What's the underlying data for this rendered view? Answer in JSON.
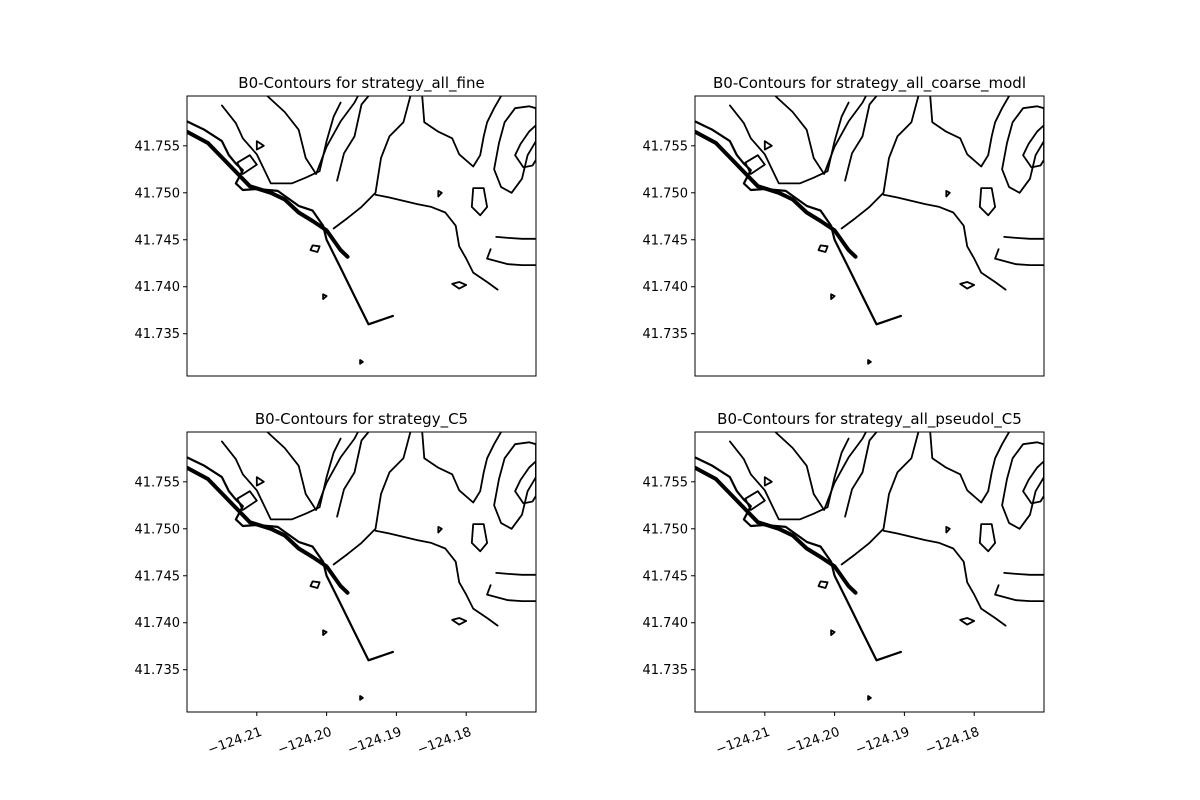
{
  "chart_data": {
    "type": "contour",
    "layout": "2x2 subplots",
    "line_color": "#000000",
    "shared_x_ticks": [
      "−124.21",
      "−124.20",
      "−124.19",
      "−124.18"
    ],
    "shared_x_tick_values": [
      -124.21,
      -124.2,
      -124.19,
      -124.18
    ],
    "x_tick_rotation_deg": 20,
    "x_ticks_shown_on": "bottom row only",
    "shared_y_ticks": [
      "41.735",
      "41.740",
      "41.745",
      "41.750",
      "41.755"
    ],
    "shared_y_tick_values": [
      41.735,
      41.74,
      41.745,
      41.75,
      41.755
    ],
    "xlim": [
      -124.22,
      -124.17
    ],
    "ylim": [
      41.7305,
      41.7603
    ],
    "grid": false,
    "legend": false,
    "panels": [
      {
        "title": "B0-Contours for  strategy_all_fine"
      },
      {
        "title": "B0-Contours for  strategy_all_coarse_modl"
      },
      {
        "title": "B0-Contours for  strategy_C5"
      },
      {
        "title": "B0-Contours for  strategy_all_pseudol_C5"
      }
    ],
    "contour_polylines": [
      [
        [
          -124.22,
          41.7565
        ],
        [
          -124.217,
          41.7553
        ],
        [
          -124.214,
          41.753
        ],
        [
          -124.211,
          41.7507
        ],
        [
          -124.208,
          41.75
        ],
        [
          -124.206,
          41.7493
        ],
        [
          -124.204,
          41.7479
        ],
        [
          -124.202,
          41.747
        ],
        [
          -124.2,
          41.746
        ],
        [
          -124.198,
          41.7439
        ],
        [
          -124.197,
          41.7432
        ]
      ],
      [
        [
          -124.22,
          41.7576
        ],
        [
          -124.2175,
          41.7567
        ],
        [
          -124.215,
          41.7555
        ],
        [
          -124.214,
          41.754
        ],
        [
          -124.213,
          41.7531
        ],
        [
          -124.212,
          41.7524
        ],
        [
          -124.213,
          41.751
        ],
        [
          -124.212,
          41.7503
        ],
        [
          -124.21,
          41.7504
        ],
        [
          -124.207,
          41.7502
        ],
        [
          -124.204,
          41.7486
        ],
        [
          -124.202,
          41.7481
        ],
        [
          -124.2005,
          41.7465
        ],
        [
          -124.2,
          41.745
        ],
        [
          -124.198,
          41.742
        ],
        [
          -124.196,
          41.739
        ],
        [
          -124.194,
          41.736
        ],
        [
          -124.1905,
          41.7369
        ]
      ],
      [
        [
          -124.215,
          41.7593
        ],
        [
          -124.213,
          41.7574
        ],
        [
          -124.212,
          41.7558
        ],
        [
          -124.21,
          41.7541
        ],
        [
          -124.208,
          41.751
        ],
        [
          -124.205,
          41.751
        ],
        [
          -124.203,
          41.7516
        ],
        [
          -124.201,
          41.7523
        ],
        [
          -124.2,
          41.7555
        ],
        [
          -124.199,
          41.7581
        ],
        [
          -124.198,
          41.7596
        ]
      ],
      [
        [
          -124.2085,
          41.7603
        ],
        [
          -124.206,
          41.7586
        ],
        [
          -124.204,
          41.7567
        ],
        [
          -124.203,
          41.7537
        ],
        [
          -124.2015,
          41.752
        ],
        [
          -124.2,
          41.7549
        ],
        [
          -124.198,
          41.7576
        ],
        [
          -124.196,
          41.7596
        ],
        [
          -124.1955,
          41.7603
        ]
      ],
      [
        [
          -124.199,
          41.7462
        ],
        [
          -124.197,
          41.7473
        ],
        [
          -124.195,
          41.7485
        ],
        [
          -124.193,
          41.75
        ],
        [
          -124.1922,
          41.7537
        ],
        [
          -124.191,
          41.756
        ],
        [
          -124.189,
          41.7575
        ],
        [
          -124.188,
          41.7603
        ]
      ],
      [
        [
          -124.1985,
          41.7513
        ],
        [
          -124.1975,
          41.7542
        ],
        [
          -124.196,
          41.756
        ],
        [
          -124.195,
          41.7594
        ],
        [
          -124.194,
          41.7603
        ]
      ],
      [
        [
          -124.193,
          41.7498
        ],
        [
          -124.191,
          41.7495
        ],
        [
          -124.187,
          41.7488
        ],
        [
          -124.185,
          41.7485
        ],
        [
          -124.183,
          41.7479
        ],
        [
          -124.1815,
          41.7465
        ],
        [
          -124.181,
          41.7443
        ],
        [
          -124.18,
          41.743
        ],
        [
          -124.179,
          41.7415
        ],
        [
          -124.177,
          41.7405
        ],
        [
          -124.1755,
          41.7397
        ]
      ],
      [
        [
          -124.1863,
          41.7603
        ],
        [
          -124.186,
          41.7575
        ],
        [
          -124.184,
          41.7565
        ],
        [
          -124.182,
          41.7558
        ],
        [
          -124.181,
          41.7541
        ],
        [
          -124.179,
          41.7528
        ],
        [
          -124.178,
          41.754
        ],
        [
          -124.1775,
          41.756
        ],
        [
          -124.177,
          41.7575
        ],
        [
          -124.176,
          41.759
        ],
        [
          -124.175,
          41.7603
        ]
      ],
      [
        [
          -124.1765,
          41.744
        ],
        [
          -124.177,
          41.743
        ],
        [
          -124.174,
          41.7424
        ],
        [
          -124.172,
          41.7423
        ],
        [
          -124.17,
          41.7423
        ]
      ],
      [
        [
          -124.1757,
          41.7453
        ],
        [
          -124.174,
          41.7452
        ],
        [
          -124.172,
          41.7451
        ],
        [
          -124.17,
          41.7451
        ]
      ]
    ],
    "contour_closed": [
      [
        [
          -124.179,
          41.7505
        ],
        [
          -124.1775,
          41.7505
        ],
        [
          -124.177,
          41.7485
        ],
        [
          -124.178,
          41.7476
        ],
        [
          -124.1792,
          41.7485
        ]
      ],
      [
        [
          -124.17,
          41.7555
        ],
        [
          -124.1712,
          41.754
        ],
        [
          -124.172,
          41.7515
        ],
        [
          -124.1735,
          41.75
        ],
        [
          -124.175,
          41.7506
        ],
        [
          -124.176,
          41.7525
        ],
        [
          -124.1753,
          41.7553
        ],
        [
          -124.1745,
          41.7575
        ],
        [
          -124.173,
          41.759
        ],
        [
          -124.171,
          41.7592
        ],
        [
          -124.17,
          41.759
        ]
      ],
      [
        [
          -124.17,
          41.7572
        ],
        [
          -124.171,
          41.7565
        ],
        [
          -124.1722,
          41.7552
        ],
        [
          -124.173,
          41.754
        ],
        [
          -124.1718,
          41.7527
        ],
        [
          -124.1705,
          41.7529
        ],
        [
          -124.17,
          41.7535
        ]
      ],
      [
        [
          -124.202,
          41.7444
        ],
        [
          -124.201,
          41.7443
        ],
        [
          -124.2013,
          41.7437
        ],
        [
          -124.2023,
          41.7439
        ]
      ],
      [
        [
          -124.2005,
          41.7392
        ],
        [
          -124.2,
          41.739
        ],
        [
          -124.2005,
          41.7387
        ]
      ],
      [
        [
          -124.182,
          41.7403
        ],
        [
          -124.181,
          41.7398
        ],
        [
          -124.18,
          41.7402
        ],
        [
          -124.181,
          41.7405
        ]
      ],
      [
        [
          -124.1952,
          41.7322
        ],
        [
          -124.1948,
          41.732
        ],
        [
          -124.1952,
          41.7318
        ]
      ],
      [
        [
          -124.184,
          41.7502
        ],
        [
          -124.1835,
          41.75
        ],
        [
          -124.184,
          41.7496
        ]
      ],
      [
        [
          -124.212,
          41.752
        ],
        [
          -124.21,
          41.753
        ],
        [
          -124.211,
          41.754
        ],
        [
          -124.2128,
          41.7532
        ]
      ],
      [
        [
          -124.21,
          41.7555
        ],
        [
          -124.209,
          41.755
        ],
        [
          -124.21,
          41.7546
        ]
      ]
    ]
  }
}
